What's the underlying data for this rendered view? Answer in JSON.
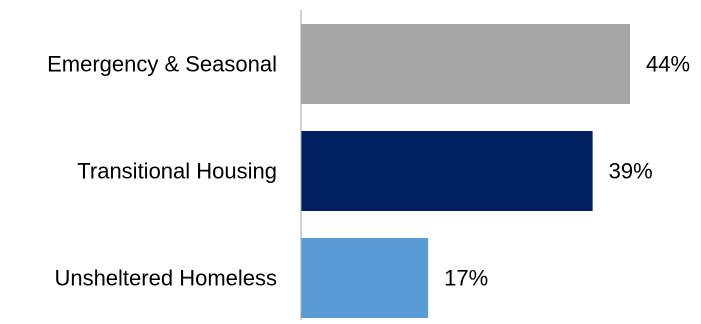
{
  "chart_data": {
    "type": "bar",
    "orientation": "horizontal",
    "title": "",
    "xlabel": "",
    "ylabel": "",
    "categories": [
      "Emergency & Seasonal",
      "Transitional Housing",
      "Unsheltered Homeless"
    ],
    "values": [
      44,
      39,
      17
    ],
    "value_labels": [
      "44%",
      "39%",
      "17%"
    ],
    "colors": [
      "#a6a6a6",
      "#002060",
      "#5b9bd5"
    ],
    "xlim": [
      0,
      50
    ],
    "grid": false,
    "legend": "none"
  }
}
